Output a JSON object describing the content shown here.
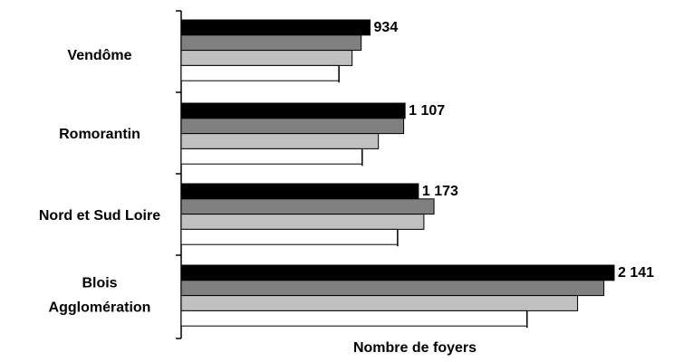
{
  "chart_data": {
    "type": "bar",
    "orientation": "horizontal",
    "categories": [
      [
        "Vendôme"
      ],
      [
        "Romorantin"
      ],
      [
        "Nord et Sud Loire"
      ],
      [
        "Blois",
        "Agglomération"
      ]
    ],
    "series": [
      {
        "values": [
          934,
          1107,
          1173,
          2141
        ],
        "color": "#000000",
        "labels": [
          "934",
          "1 107",
          "1 173",
          "2 141"
        ]
      },
      {
        "values": [
          890,
          1100,
          1250,
          2090
        ],
        "color": "#808080"
      },
      {
        "values": [
          845,
          975,
          1200,
          1960
        ],
        "color": "#c0c0c0"
      },
      {
        "values": [
          780,
          895,
          1070,
          1710
        ],
        "color": "#ffffff"
      }
    ],
    "xlabel": "Nombre de foyers",
    "xlim": [
      0,
      2150
    ],
    "grid": false
  }
}
